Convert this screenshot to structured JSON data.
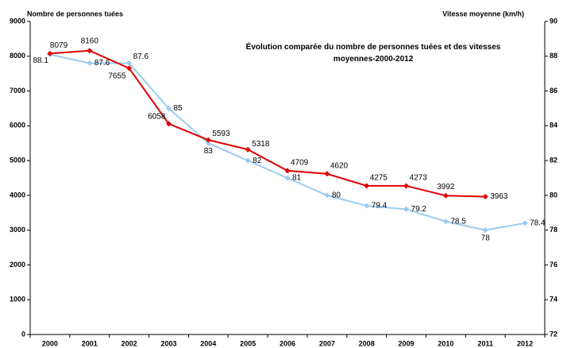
{
  "chart_data": {
    "type": "line",
    "title": "Évolution comparée du nombre de personnes tuées et des vitesses moyennes-2000-2012",
    "ylabel": "Nombre de personnes tuées",
    "y2label": "Vitesse moyenne (km/h)",
    "categories": [
      "2000",
      "2001",
      "2002",
      "2003",
      "2004",
      "2005",
      "2006",
      "2007",
      "2008",
      "2009",
      "2010",
      "2011",
      "2012"
    ],
    "series": [
      {
        "name": "Nombre de personnes tuées",
        "color": "#e00000",
        "axis": "y",
        "values": [
          8079,
          8160,
          7655,
          6058,
          5593,
          5318,
          4709,
          4620,
          4275,
          4273,
          3992,
          3963,
          null
        ]
      },
      {
        "name": "Vitesse moyenne (km/h)",
        "color": "#99ccf0",
        "axis": "y2",
        "values": [
          88.1,
          87.6,
          87.6,
          85,
          83,
          82,
          81,
          80,
          79.4,
          79.2,
          78.5,
          78,
          78.4
        ]
      }
    ],
    "ylim": [
      0,
      9000
    ],
    "yticks": [
      0,
      1000,
      2000,
      3000,
      4000,
      5000,
      6000,
      7000,
      8000,
      9000
    ],
    "y2lim": [
      72,
      90
    ],
    "y2ticks": [
      72,
      74,
      76,
      78,
      80,
      82,
      84,
      86,
      88,
      90
    ],
    "grid": false
  }
}
